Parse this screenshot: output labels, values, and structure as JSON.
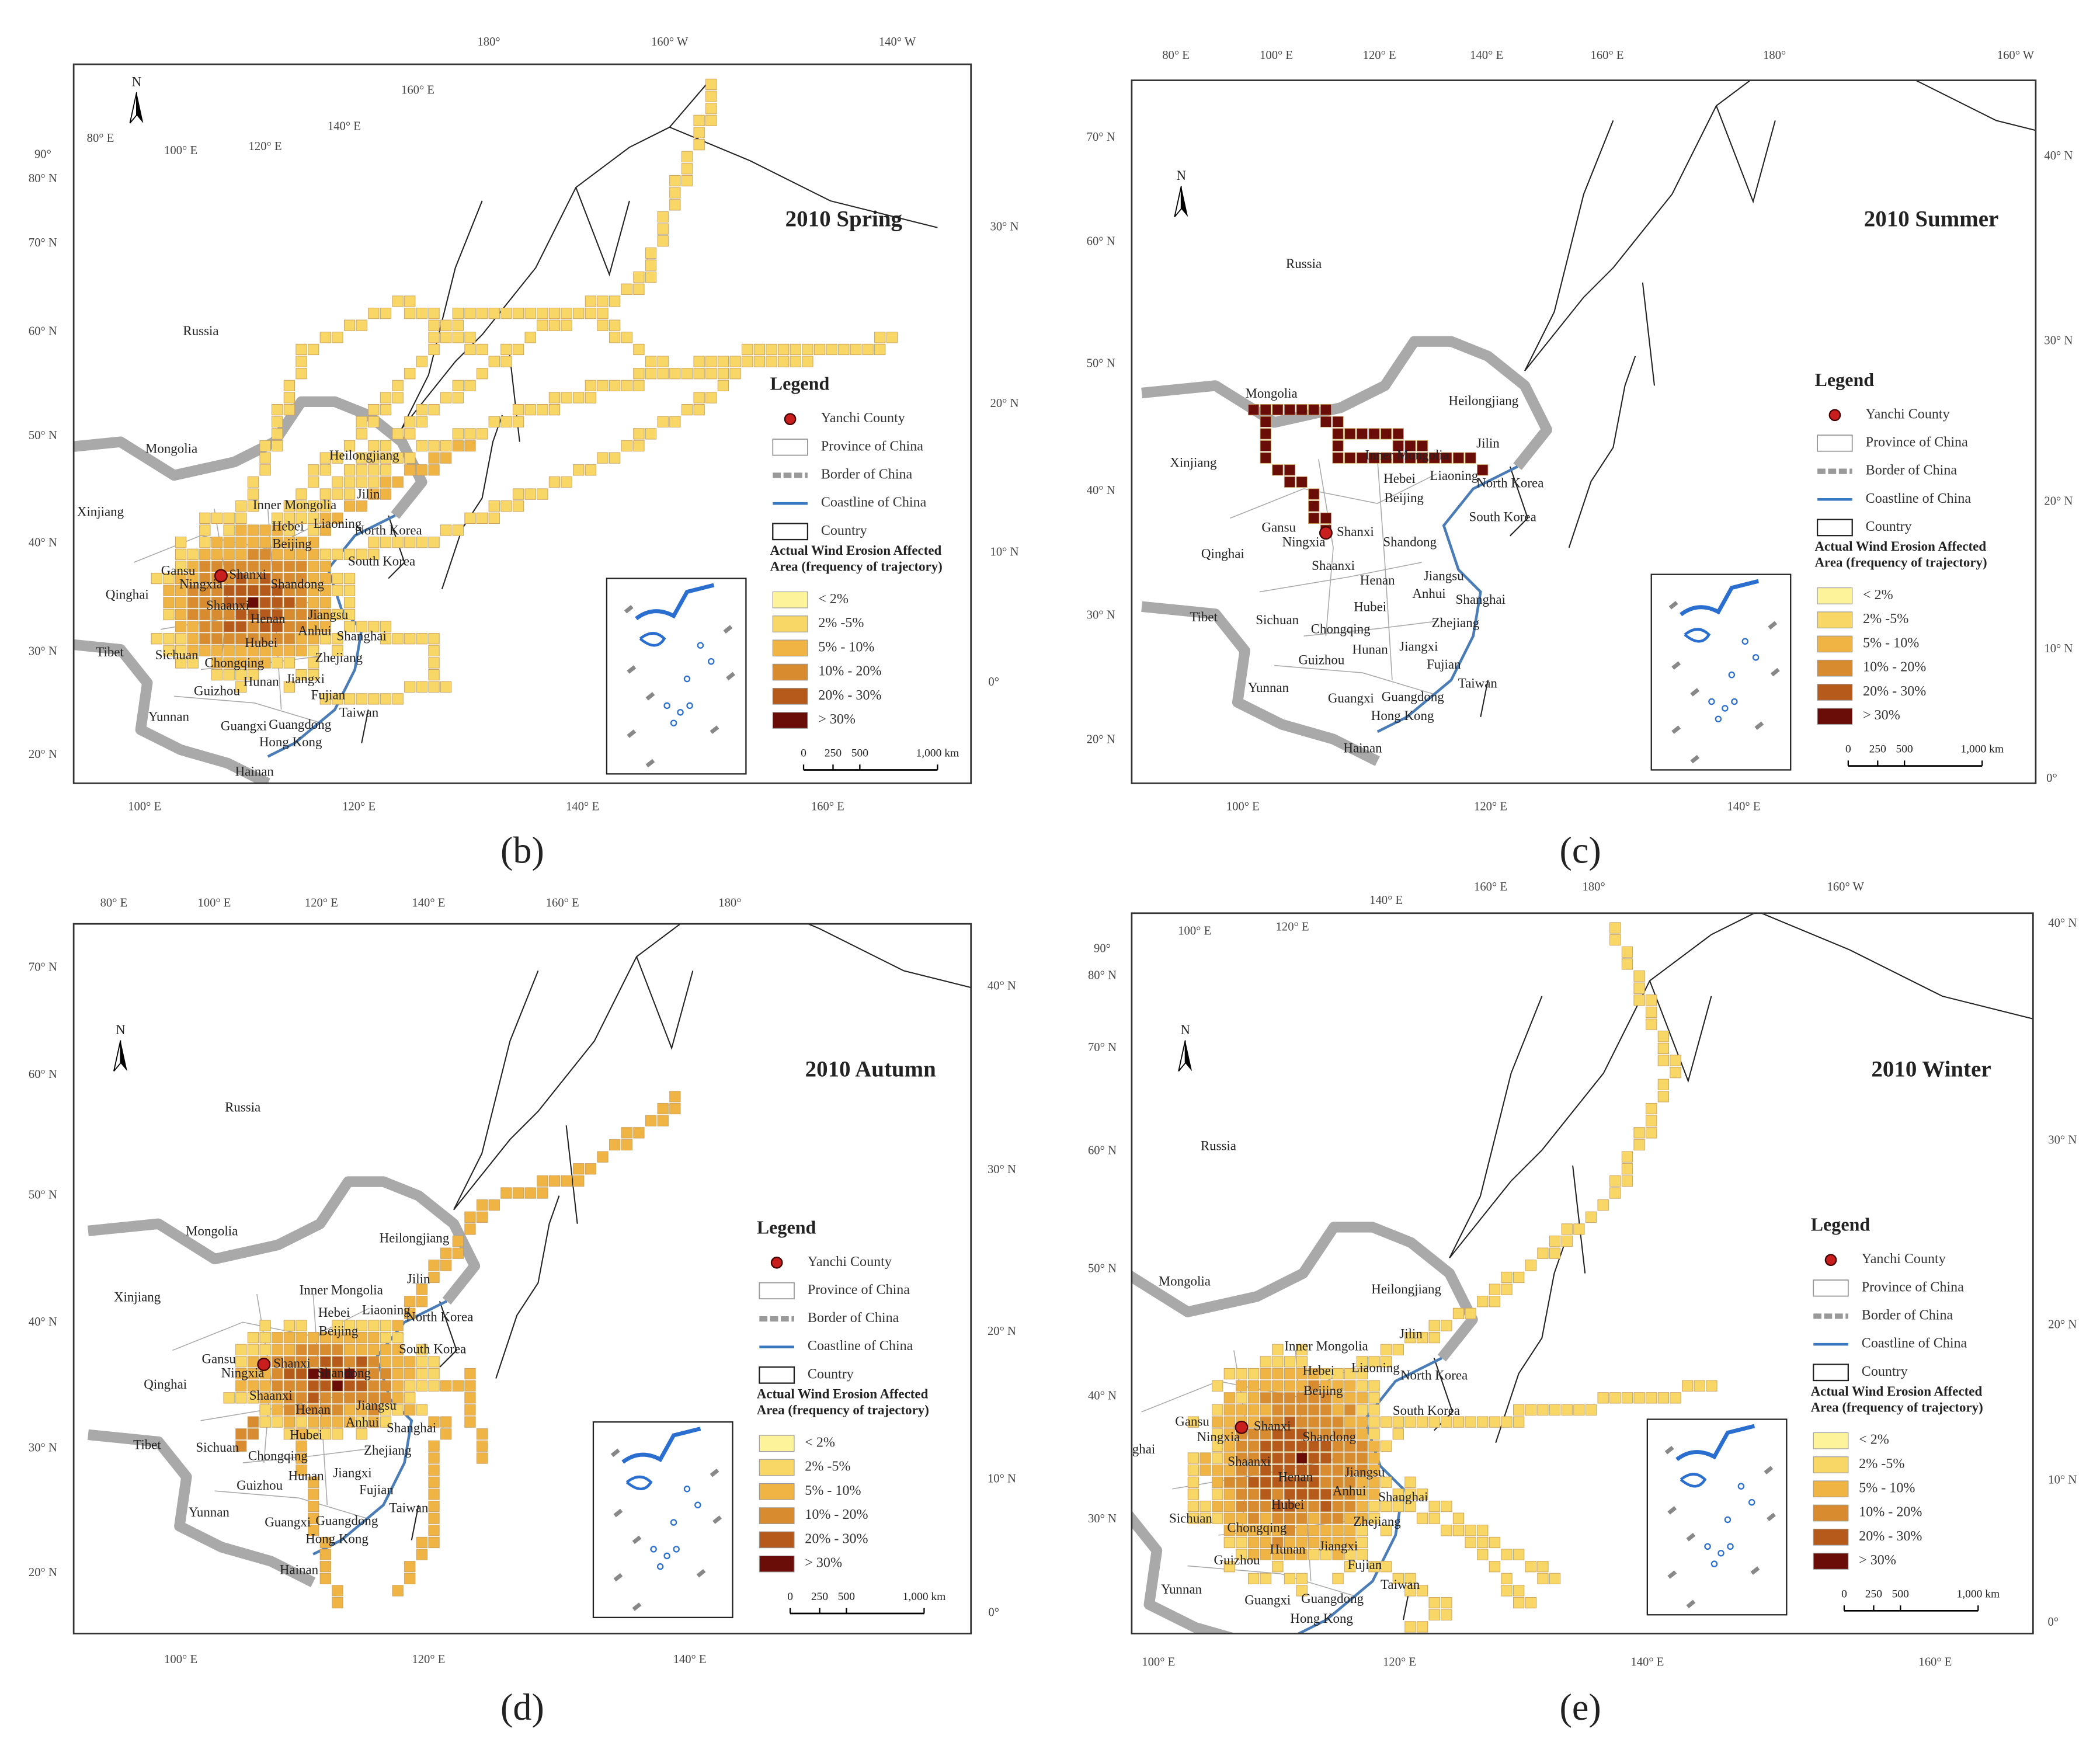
{
  "legend": {
    "title": "Legend",
    "items": [
      "Yanchi County",
      "Province of China",
      "Border of China",
      "Coastline of China",
      "Country"
    ],
    "scale_title": [
      "Actual Wind Erosion Affected",
      "Area (frequency of trajectory)"
    ],
    "classes": [
      "< 2%",
      "2% -5%",
      "5% - 10%",
      "10% - 20%",
      "20% - 30%",
      "> 30%"
    ],
    "colors": [
      "#fdf39a",
      "#f8d766",
      "#efb444",
      "#d98b30",
      "#b65a1c",
      "#6a0c08"
    ],
    "scalebar": [
      "0",
      "250",
      "500",
      "1,000 km"
    ]
  },
  "north": "N",
  "places": [
    "Russia",
    "Mongolia",
    "Xinjiang",
    "Qinghai",
    "Tibet",
    "Gansu",
    "Ningxia",
    "Shanxi",
    "Shaanxi",
    "Inner Mongolia",
    "Heilongjiang",
    "Jilin",
    "Liaoning",
    "Hebei",
    "Beijing",
    "North Korea",
    "South Korea",
    "Shandong",
    "Henan",
    "Jiangsu",
    "Anhui",
    "Shanghai",
    "Hubei",
    "Sichuan",
    "Chongqing",
    "Zhejiang",
    "Jiangxi",
    "Hunan",
    "Fujian",
    "Guizhou",
    "Taiwan",
    "Yunnan",
    "Guangxi",
    "Guangdong",
    "Hong Kong",
    "Hainan"
  ],
  "panels": [
    {
      "label": "(b)",
      "title": "2010 Spring",
      "lon_top": [
        "180°",
        "160° W",
        "140° W",
        "160° E",
        "140° E",
        "120° E",
        "100° E",
        "80° E"
      ],
      "lat_left": [
        "90°",
        "80° N",
        "70° N",
        "60° N",
        "50° N",
        "40° N",
        "30° N",
        "20° N"
      ],
      "lat_right": [
        "30° N",
        "20° N",
        "10° N",
        "0°"
      ],
      "lon_bottom": [
        "100° E",
        "120° E",
        "140° E",
        "160° E"
      ]
    },
    {
      "label": "(c)",
      "title": "2010 Summer",
      "lon_top": [
        "80° E",
        "100° E",
        "120° E",
        "140° E",
        "160° E",
        "180°",
        "160° W"
      ],
      "lat_left": [
        "70° N",
        "60° N",
        "50° N",
        "40° N",
        "30° N",
        "20° N"
      ],
      "lat_right": [
        "40° N",
        "30° N",
        "20° N",
        "10° N",
        "0°"
      ],
      "lon_bottom": [
        "100° E",
        "120° E",
        "140° E"
      ]
    },
    {
      "label": "(d)",
      "title": "2010 Autumn",
      "lon_top": [
        "80° E",
        "100° E",
        "120° E",
        "140° E",
        "160° E",
        "180°"
      ],
      "lat_left": [
        "70° N",
        "60° N",
        "50° N",
        "40° N",
        "30° N",
        "20° N"
      ],
      "lat_right": [
        "40° N",
        "30° N",
        "20° N",
        "10° N",
        "0°"
      ],
      "lon_bottom": [
        "100° E",
        "120° E",
        "140° E"
      ]
    },
    {
      "label": "(e)",
      "title": "2010 Winter",
      "lon_top": [
        "140° E",
        "160° E",
        "180°",
        "160° W",
        "120° E",
        "100° E"
      ],
      "lat_left": [
        "90°",
        "80° N",
        "70° N",
        "60° N",
        "50° N",
        "40° N",
        "30° N"
      ],
      "lat_right": [
        "40° N",
        "30° N",
        "20° N",
        "10° N",
        "0°"
      ],
      "lon_bottom": [
        "100° E",
        "120° E",
        "140° E",
        "160° E"
      ]
    }
  ]
}
